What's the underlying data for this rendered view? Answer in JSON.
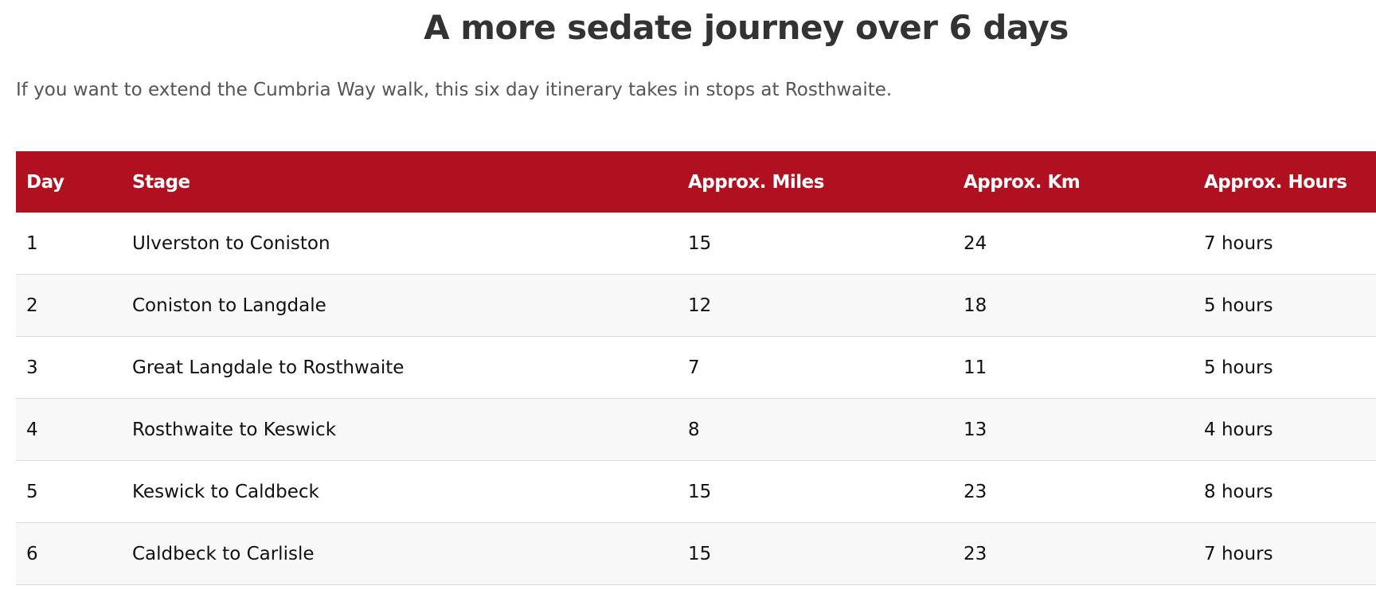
{
  "header": {
    "title": "A more sedate journey over 6 days",
    "intro": "If you want to extend the Cumbria Way walk, this six day itinerary takes in stops at Rosthwaite."
  },
  "table": {
    "columns": [
      "Day",
      "Stage",
      "Approx. Miles",
      "Approx. Km",
      "Approx. Hours"
    ],
    "rows": [
      [
        "1",
        "Ulverston to Coniston",
        "15",
        "24",
        "7 hours"
      ],
      [
        "2",
        "Coniston to Langdale",
        "12",
        "18",
        "5 hours"
      ],
      [
        "3",
        "Great Langdale to Rosthwaite",
        "7",
        "11",
        "5 hours"
      ],
      [
        "4",
        "Rosthwaite to Keswick",
        "8",
        "13",
        "4 hours"
      ],
      [
        "5",
        "Keswick to Caldbeck",
        "15",
        "23",
        "8 hours"
      ],
      [
        "6",
        "Caldbeck to Carlisle",
        "15",
        "23",
        "7 hours"
      ]
    ]
  }
}
